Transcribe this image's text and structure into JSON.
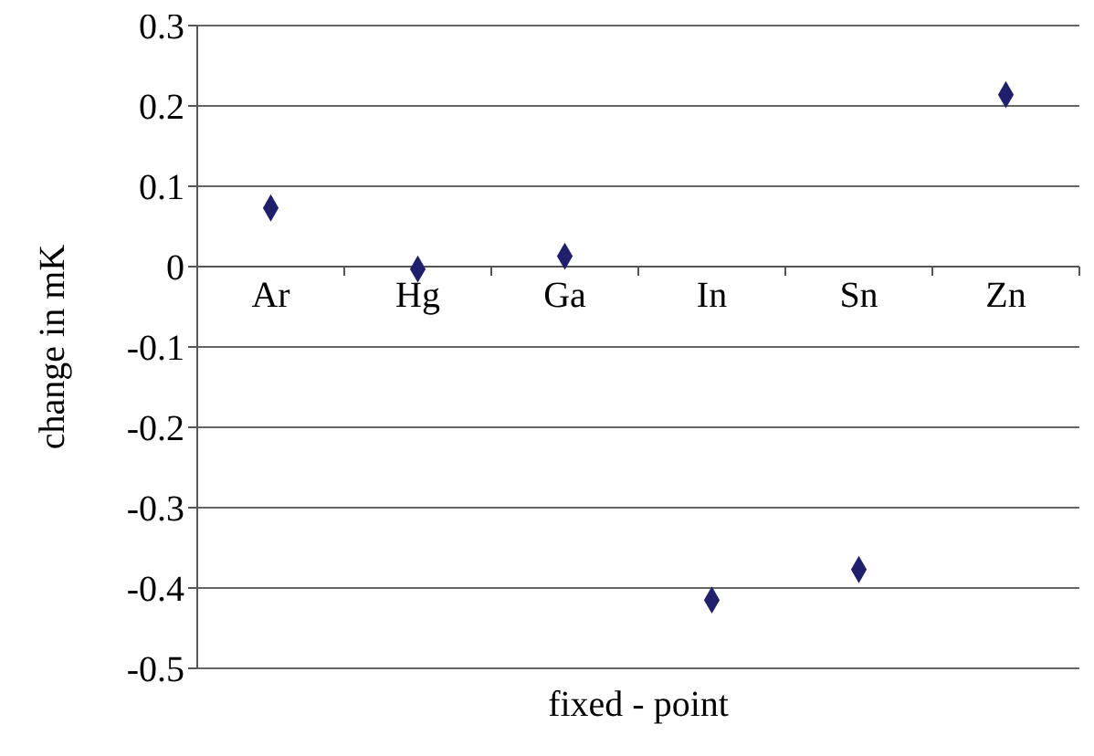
{
  "chart_data": {
    "type": "scatter",
    "xlabel": "fixed - point",
    "ylabel": "change in mK",
    "categories": [
      "Ar",
      "Hg",
      "Ga",
      "In",
      "Sn",
      "Zn"
    ],
    "series": [
      {
        "color": "#1f1f6e",
        "values": [
          0.073,
          -0.003,
          0.013,
          -0.415,
          -0.377,
          0.214
        ]
      }
    ],
    "ylim": [
      -0.5,
      0.3
    ],
    "yticks": [
      -0.5,
      -0.4,
      -0.3,
      -0.2,
      -0.1,
      0,
      0.1,
      0.2,
      0.3
    ],
    "grid": "y",
    "marker": "diamond"
  }
}
